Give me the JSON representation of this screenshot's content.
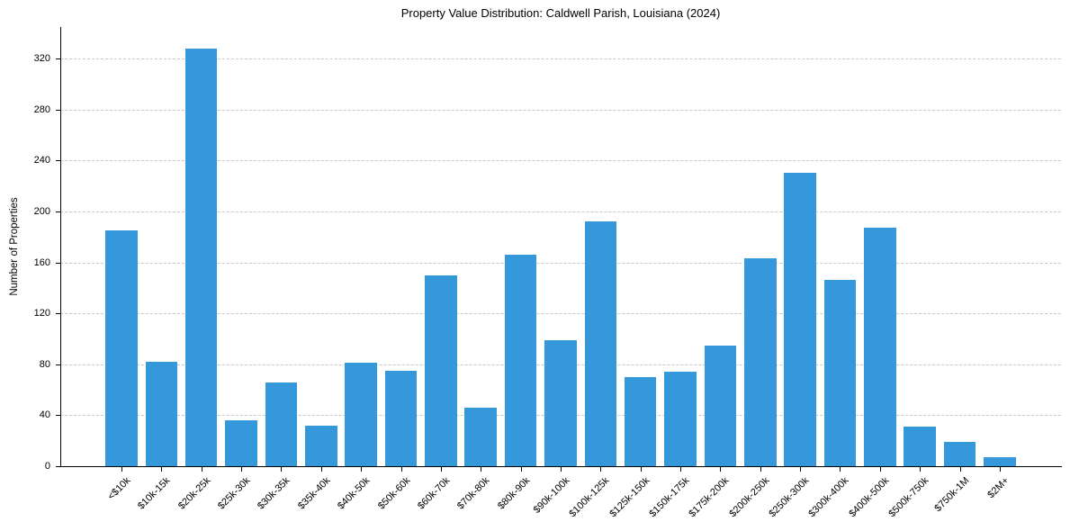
{
  "chart_data": {
    "type": "bar",
    "title": "Property Value Distribution: Caldwell Parish, Louisiana (2024)",
    "xlabel": "",
    "ylabel": "Number of Properties",
    "ylim": [
      0,
      345
    ],
    "yticks": [
      0,
      40,
      80,
      120,
      160,
      200,
      240,
      280,
      320
    ],
    "grid": "y dashed",
    "color": "#3498db",
    "categories": [
      "<$10k",
      "$10k-15k",
      "$20k-25k",
      "$25k-30k",
      "$30k-35k",
      "$35k-40k",
      "$40k-50k",
      "$50k-60k",
      "$60k-70k",
      "$70k-80k",
      "$80k-90k",
      "$90k-100k",
      "$100k-125k",
      "$125k-150k",
      "$150k-175k",
      "$175k-200k",
      "$200k-250k",
      "$250k-300k",
      "$300k-400k",
      "$400k-500k",
      "$500k-750k",
      "$750k-1M",
      "$2M+"
    ],
    "values": [
      185,
      82,
      328,
      36,
      66,
      32,
      81,
      75,
      150,
      46,
      166,
      99,
      192,
      70,
      74,
      95,
      163,
      230,
      146,
      187,
      31,
      19,
      7
    ]
  }
}
